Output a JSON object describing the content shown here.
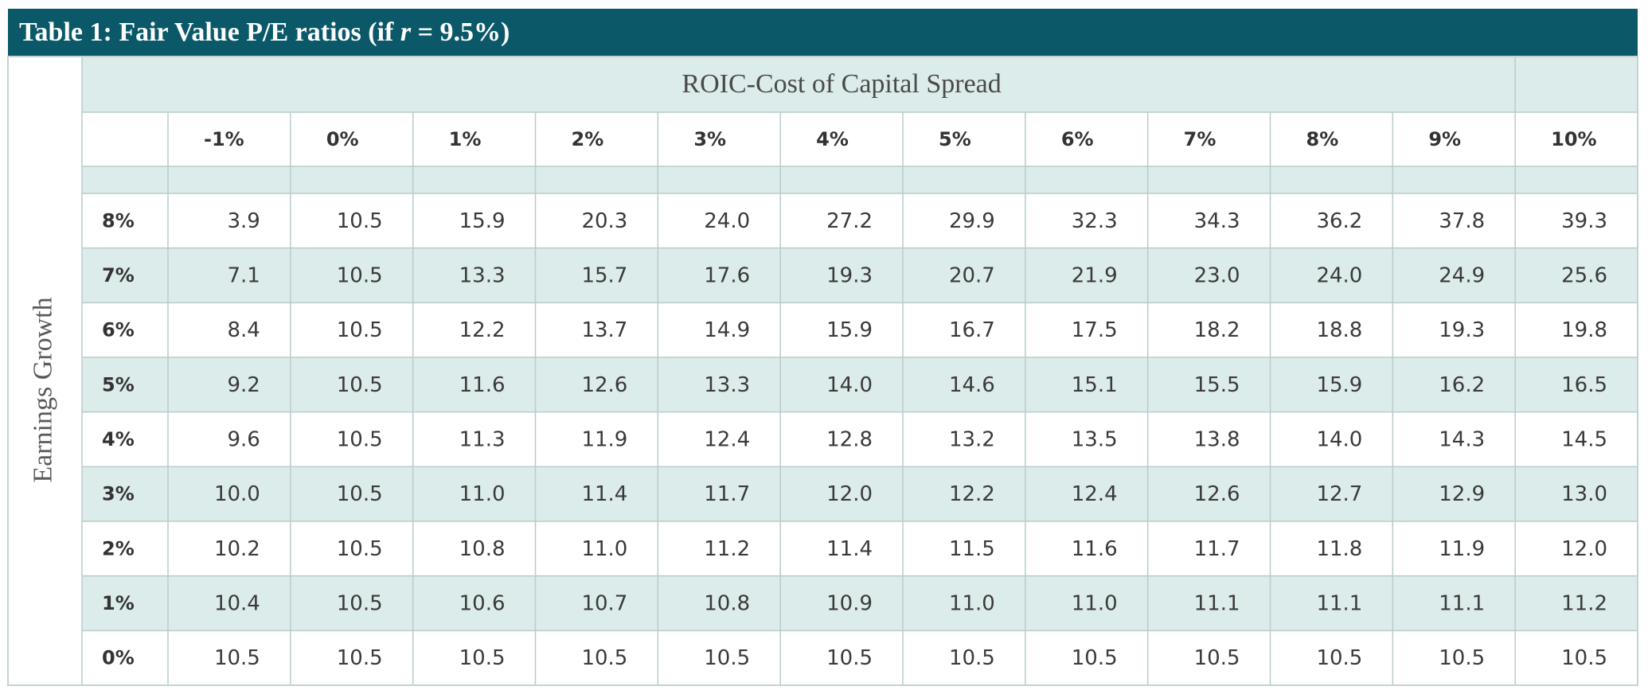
{
  "table": {
    "title_prefix": "Table 1: Fair Value P/E ratios (if ",
    "title_variable": "r",
    "title_suffix": " = 9.5%)",
    "column_group_label": "ROIC-Cost of Capital Spread",
    "row_group_label": "Earnings Growth",
    "column_headers": [
      "-1%",
      "0%",
      "1%",
      "2%",
      "3%",
      "4%",
      "5%",
      "6%",
      "7%",
      "8%",
      "9%",
      "10%"
    ],
    "row_labels": [
      "8%",
      "7%",
      "6%",
      "5%",
      "4%",
      "3%",
      "2%",
      "1%",
      "0%"
    ],
    "rows": [
      [
        "3.9",
        "10.5",
        "15.9",
        "20.3",
        "24.0",
        "27.2",
        "29.9",
        "32.3",
        "34.3",
        "36.2",
        "37.8",
        "39.3"
      ],
      [
        "7.1",
        "10.5",
        "13.3",
        "15.7",
        "17.6",
        "19.3",
        "20.7",
        "21.9",
        "23.0",
        "24.0",
        "24.9",
        "25.6"
      ],
      [
        "8.4",
        "10.5",
        "12.2",
        "13.7",
        "14.9",
        "15.9",
        "16.7",
        "17.5",
        "18.2",
        "18.8",
        "19.3",
        "19.8"
      ],
      [
        "9.2",
        "10.5",
        "11.6",
        "12.6",
        "13.3",
        "14.0",
        "14.6",
        "15.1",
        "15.5",
        "15.9",
        "16.2",
        "16.5"
      ],
      [
        "9.6",
        "10.5",
        "11.3",
        "11.9",
        "12.4",
        "12.8",
        "13.2",
        "13.5",
        "13.8",
        "14.0",
        "14.3",
        "14.5"
      ],
      [
        "10.0",
        "10.5",
        "11.0",
        "11.4",
        "11.7",
        "12.0",
        "12.2",
        "12.4",
        "12.6",
        "12.7",
        "12.9",
        "13.0"
      ],
      [
        "10.2",
        "10.5",
        "10.8",
        "11.0",
        "11.2",
        "11.4",
        "11.5",
        "11.6",
        "11.7",
        "11.8",
        "11.9",
        "12.0"
      ],
      [
        "10.4",
        "10.5",
        "10.6",
        "10.7",
        "10.8",
        "10.9",
        "11.0",
        "11.0",
        "11.1",
        "11.1",
        "11.1",
        "11.2"
      ],
      [
        "10.5",
        "10.5",
        "10.5",
        "10.5",
        "10.5",
        "10.5",
        "10.5",
        "10.5",
        "10.5",
        "10.5",
        "10.5",
        "10.5"
      ]
    ]
  }
}
